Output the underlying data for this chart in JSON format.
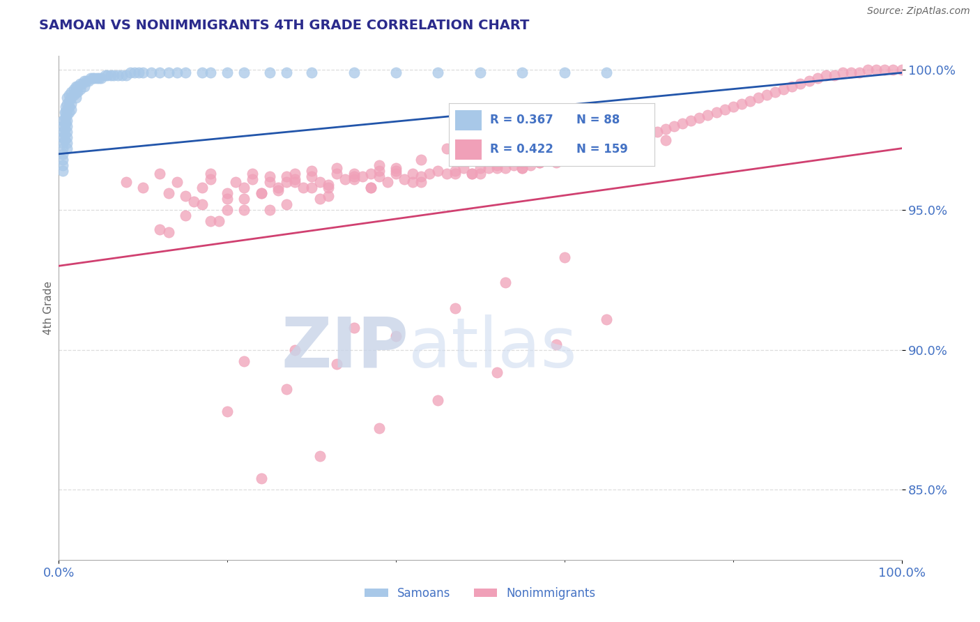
{
  "title": "SAMOAN VS NONIMMIGRANTS 4TH GRADE CORRELATION CHART",
  "source": "Source: ZipAtlas.com",
  "ylabel": "4th Grade",
  "xlim": [
    0.0,
    1.0
  ],
  "ylim": [
    0.825,
    1.005
  ],
  "yticks": [
    0.85,
    0.9,
    0.95,
    1.0
  ],
  "ytick_labels": [
    "85.0%",
    "90.0%",
    "95.0%",
    "100.0%"
  ],
  "xtick_labels": [
    "0.0%",
    "100.0%"
  ],
  "legend_r": [
    "0.367",
    "0.422"
  ],
  "legend_n": [
    "88",
    "159"
  ],
  "blue_color": "#A8C8E8",
  "pink_color": "#F0A0B8",
  "blue_line_color": "#2255AA",
  "pink_line_color": "#D04070",
  "title_color": "#2B2B8C",
  "axis_color": "#4472C4",
  "background_color": "#FFFFFF",
  "grid_color": "#DDDDDD",
  "blue_trend_y_start": 0.97,
  "blue_trend_y_end": 0.999,
  "pink_trend_y_start": 0.93,
  "pink_trend_y_end": 0.972,
  "samoans_x": [
    0.005,
    0.005,
    0.005,
    0.005,
    0.005,
    0.005,
    0.005,
    0.005,
    0.005,
    0.005,
    0.007,
    0.007,
    0.007,
    0.007,
    0.007,
    0.007,
    0.008,
    0.008,
    0.008,
    0.008,
    0.01,
    0.01,
    0.01,
    0.01,
    0.01,
    0.01,
    0.01,
    0.01,
    0.01,
    0.01,
    0.012,
    0.012,
    0.012,
    0.012,
    0.015,
    0.015,
    0.015,
    0.015,
    0.018,
    0.018,
    0.02,
    0.02,
    0.02,
    0.022,
    0.022,
    0.025,
    0.025,
    0.028,
    0.03,
    0.03,
    0.033,
    0.035,
    0.038,
    0.04,
    0.042,
    0.045,
    0.048,
    0.05,
    0.055,
    0.058,
    0.062,
    0.065,
    0.07,
    0.075,
    0.08,
    0.085,
    0.09,
    0.095,
    0.1,
    0.11,
    0.12,
    0.13,
    0.14,
    0.15,
    0.17,
    0.18,
    0.2,
    0.22,
    0.25,
    0.27,
    0.3,
    0.35,
    0.4,
    0.45,
    0.5,
    0.55,
    0.6,
    0.65
  ],
  "samoans_y": [
    0.982,
    0.98,
    0.978,
    0.976,
    0.974,
    0.972,
    0.97,
    0.968,
    0.966,
    0.964,
    0.985,
    0.983,
    0.981,
    0.979,
    0.977,
    0.975,
    0.987,
    0.985,
    0.983,
    0.981,
    0.99,
    0.988,
    0.986,
    0.984,
    0.982,
    0.98,
    0.978,
    0.976,
    0.974,
    0.972,
    0.991,
    0.989,
    0.987,
    0.985,
    0.992,
    0.99,
    0.988,
    0.986,
    0.993,
    0.991,
    0.994,
    0.992,
    0.99,
    0.994,
    0.992,
    0.995,
    0.993,
    0.995,
    0.996,
    0.994,
    0.996,
    0.996,
    0.997,
    0.997,
    0.997,
    0.997,
    0.997,
    0.997,
    0.998,
    0.998,
    0.998,
    0.998,
    0.998,
    0.998,
    0.998,
    0.999,
    0.999,
    0.999,
    0.999,
    0.999,
    0.999,
    0.999,
    0.999,
    0.999,
    0.999,
    0.999,
    0.999,
    0.999,
    0.999,
    0.999,
    0.999,
    0.999,
    0.999,
    0.999,
    0.999,
    0.999,
    0.999,
    0.999
  ],
  "nonimmigrants_x": [
    0.08,
    0.1,
    0.12,
    0.13,
    0.14,
    0.15,
    0.16,
    0.17,
    0.18,
    0.18,
    0.2,
    0.2,
    0.21,
    0.22,
    0.23,
    0.23,
    0.24,
    0.25,
    0.25,
    0.26,
    0.27,
    0.27,
    0.28,
    0.28,
    0.29,
    0.3,
    0.3,
    0.31,
    0.32,
    0.33,
    0.33,
    0.34,
    0.35,
    0.35,
    0.36,
    0.37,
    0.38,
    0.38,
    0.39,
    0.4,
    0.4,
    0.41,
    0.42,
    0.43,
    0.44,
    0.45,
    0.46,
    0.47,
    0.48,
    0.49,
    0.5,
    0.5,
    0.51,
    0.52,
    0.53,
    0.54,
    0.55,
    0.55,
    0.56,
    0.57,
    0.58,
    0.59,
    0.6,
    0.61,
    0.62,
    0.63,
    0.64,
    0.65,
    0.66,
    0.67,
    0.68,
    0.69,
    0.7,
    0.71,
    0.72,
    0.73,
    0.74,
    0.75,
    0.76,
    0.77,
    0.78,
    0.79,
    0.8,
    0.81,
    0.82,
    0.83,
    0.84,
    0.85,
    0.86,
    0.87,
    0.88,
    0.89,
    0.9,
    0.91,
    0.92,
    0.93,
    0.94,
    0.95,
    0.96,
    0.97,
    0.98,
    0.99,
    1.0,
    0.15,
    0.17,
    0.2,
    0.22,
    0.24,
    0.26,
    0.28,
    0.3,
    0.32,
    0.35,
    0.38,
    0.4,
    0.43,
    0.46,
    0.5,
    0.53,
    0.56,
    0.59,
    0.12,
    0.18,
    0.22,
    0.27,
    0.32,
    0.37,
    0.42,
    0.47,
    0.52,
    0.57,
    0.62,
    0.67,
    0.72,
    0.13,
    0.19,
    0.25,
    0.31,
    0.37,
    0.43,
    0.49,
    0.55,
    0.61,
    0.22,
    0.28,
    0.35,
    0.2,
    0.27,
    0.33,
    0.4,
    0.47,
    0.53,
    0.6,
    0.24,
    0.31,
    0.38,
    0.45,
    0.52,
    0.59,
    0.65
  ],
  "nonimmigrants_y": [
    0.96,
    0.958,
    0.963,
    0.956,
    0.96,
    0.955,
    0.953,
    0.958,
    0.963,
    0.961,
    0.956,
    0.954,
    0.96,
    0.958,
    0.963,
    0.961,
    0.956,
    0.962,
    0.96,
    0.957,
    0.962,
    0.96,
    0.963,
    0.961,
    0.958,
    0.964,
    0.962,
    0.96,
    0.958,
    0.965,
    0.963,
    0.961,
    0.963,
    0.961,
    0.962,
    0.963,
    0.964,
    0.962,
    0.96,
    0.965,
    0.963,
    0.961,
    0.963,
    0.962,
    0.963,
    0.964,
    0.963,
    0.964,
    0.965,
    0.963,
    0.965,
    0.963,
    0.965,
    0.966,
    0.965,
    0.966,
    0.967,
    0.965,
    0.966,
    0.967,
    0.968,
    0.967,
    0.968,
    0.969,
    0.97,
    0.97,
    0.971,
    0.972,
    0.973,
    0.974,
    0.975,
    0.976,
    0.977,
    0.978,
    0.979,
    0.98,
    0.981,
    0.982,
    0.983,
    0.984,
    0.985,
    0.986,
    0.987,
    0.988,
    0.989,
    0.99,
    0.991,
    0.992,
    0.993,
    0.994,
    0.995,
    0.996,
    0.997,
    0.998,
    0.998,
    0.999,
    0.999,
    0.999,
    1.0,
    1.0,
    1.0,
    1.0,
    1.0,
    0.948,
    0.952,
    0.95,
    0.954,
    0.956,
    0.958,
    0.96,
    0.958,
    0.959,
    0.962,
    0.966,
    0.964,
    0.968,
    0.972,
    0.975,
    0.978,
    0.98,
    0.984,
    0.943,
    0.946,
    0.95,
    0.952,
    0.955,
    0.958,
    0.96,
    0.963,
    0.965,
    0.967,
    0.969,
    0.972,
    0.975,
    0.942,
    0.946,
    0.95,
    0.954,
    0.958,
    0.96,
    0.963,
    0.965,
    0.968,
    0.896,
    0.9,
    0.908,
    0.878,
    0.886,
    0.895,
    0.905,
    0.915,
    0.924,
    0.933,
    0.854,
    0.862,
    0.872,
    0.882,
    0.892,
    0.902,
    0.911
  ]
}
